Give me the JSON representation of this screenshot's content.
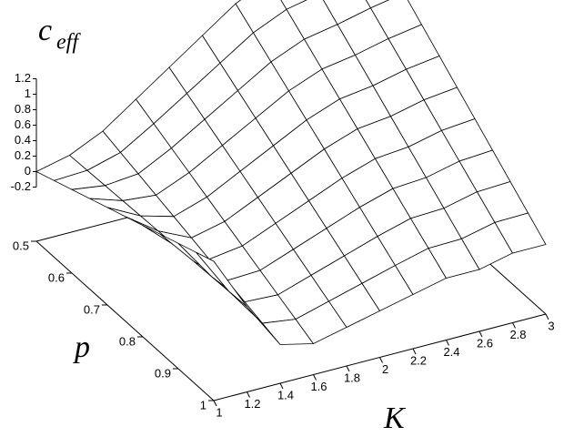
{
  "chart_data": {
    "type": "surface",
    "xlabel": "K",
    "ylabel": "p",
    "zlabel": "c",
    "zlabel_sub": "eff",
    "x": [
      1,
      1.2,
      1.4,
      1.6,
      1.8,
      2,
      2.2,
      2.4,
      2.6,
      2.8,
      3
    ],
    "y": [
      0.5,
      0.55,
      0.6,
      0.65,
      0.7,
      0.75,
      0.8,
      0.85,
      0.9,
      0.95,
      1
    ],
    "z": [
      [
        0,
        0.1,
        0.3,
        0.6,
        0.9,
        1.2,
        1.5,
        1.7,
        1.8,
        1.9,
        2
      ],
      [
        0.09,
        0.11,
        0.23,
        0.49,
        0.77,
        1.05,
        1.33,
        1.52,
        1.61,
        1.71,
        1.8
      ],
      [
        0.18,
        0.12,
        0.16,
        0.38,
        0.64,
        0.9,
        1.16,
        1.34,
        1.42,
        1.52,
        1.6
      ],
      [
        0.27,
        0.13,
        0.09,
        0.27,
        0.51,
        0.75,
        0.99,
        1.16,
        1.23,
        1.33,
        1.4
      ],
      [
        0.36,
        0.14,
        0.02,
        0.16,
        0.38,
        0.6,
        0.82,
        0.98,
        1.04,
        1.14,
        1.2
      ],
      [
        0.45,
        0.15,
        -0.05,
        0.05,
        0.25,
        0.45,
        0.65,
        0.8,
        0.85,
        0.95,
        1
      ],
      [
        0.54,
        0.16,
        -0.12,
        -0.06,
        0.12,
        0.3,
        0.48,
        0.62,
        0.66,
        0.76,
        0.8
      ],
      [
        0.63,
        0.17,
        -0.19,
        -0.17,
        -0.01,
        0.15,
        0.31,
        0.44,
        0.47,
        0.57,
        0.6
      ],
      [
        0.72,
        0.18,
        -0.26,
        -0.28,
        -0.14,
        0,
        0.14,
        0.26,
        0.28,
        0.38,
        0.4
      ],
      [
        0.81,
        0.19,
        -0.33,
        -0.39,
        -0.27,
        -0.15,
        -0.03,
        0.08,
        0.09,
        0.19,
        0.2
      ],
      [
        0.9,
        0.2,
        -0.4,
        -0.5,
        -0.4,
        -0.3,
        -0.2,
        -0.1,
        -0.1,
        0,
        0
      ]
    ],
    "xlim": [
      1,
      3
    ],
    "xticks": [
      1,
      1.2,
      1.4,
      1.6,
      1.8,
      2,
      2.2,
      2.4,
      2.6,
      2.8,
      3
    ],
    "ylim": [
      0.5,
      1
    ],
    "yticks": [
      0.5,
      0.6,
      0.7,
      0.8,
      0.9,
      1
    ],
    "zlim": [
      -0.9,
      2
    ],
    "zticks": [
      -0.2,
      0,
      0.2,
      0.4,
      0.6,
      0.8,
      1,
      1.2
    ],
    "color": "#000000"
  }
}
